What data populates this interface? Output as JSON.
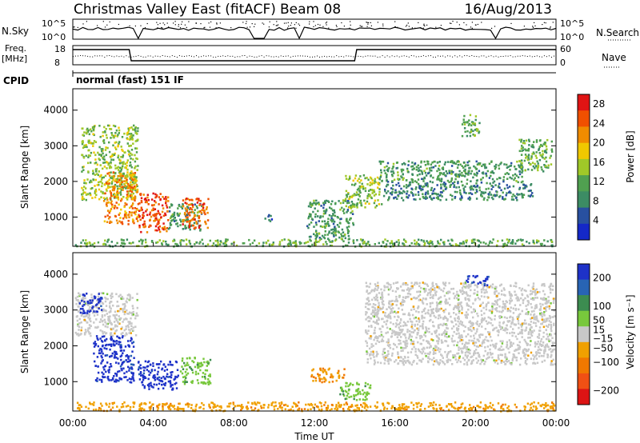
{
  "header": {
    "title": "Christmas Valley East (fitACF)",
    "beam": "Beam 08",
    "date": "16/Aug/2013"
  },
  "status_panels": {
    "nsky_label": "N.Sky",
    "nsky_ticks": [
      "10^5",
      "10^0"
    ],
    "nsearch_label": "N.Search",
    "nsearch_ticks": [
      "10^5",
      "10^0"
    ],
    "freq_label": "Freq.",
    "freq_unit": "[MHz]",
    "freq_ticks": [
      "18",
      "8"
    ],
    "nave_label": "Nave",
    "nave_ticks": [
      "60",
      "0"
    ],
    "cpid_label": "CPID",
    "cpid_mode": "normal (fast) 151 IF"
  },
  "x_axis": {
    "label": "Time UT",
    "ticks": [
      "00:00",
      "04:00",
      "08:00",
      "12:00",
      "16:00",
      "20:00",
      "00:00"
    ],
    "range_hours": [
      0,
      24
    ]
  },
  "colors": {
    "power": [
      "#1428c8",
      "#2850a0",
      "#3c8c64",
      "#50a050",
      "#a0c828",
      "#f0c800",
      "#f08c00",
      "#f05000",
      "#e01414"
    ],
    "velocity": [
      "#1e32c8",
      "#2864b4",
      "#3c8c50",
      "#78c83c",
      "#c8c8c8",
      "#f0a000",
      "#f07800",
      "#f05014",
      "#dc1414"
    ]
  },
  "chart_data": [
    {
      "type": "heatmap",
      "name": "Power",
      "xlabel": "Time UT",
      "ylabel": "Slant Range [km]",
      "xlim": [
        0,
        24
      ],
      "ylim": [
        180,
        4600
      ],
      "y_ticks": [
        "4000",
        "3000",
        "2000",
        "1000"
      ],
      "colorbar": {
        "label": "Power [dB]",
        "ticks": [
          "28",
          "24",
          "20",
          "16",
          "12",
          "8",
          "4"
        ],
        "range": [
          0,
          30
        ]
      },
      "regions": [
        {
          "t": [
            0.4,
            3.2
          ],
          "r": [
            1500,
            3600
          ],
          "v": 14
        },
        {
          "t": [
            1.5,
            3.2
          ],
          "r": [
            800,
            2300
          ],
          "v": 22
        },
        {
          "t": [
            3.2,
            4.7
          ],
          "r": [
            600,
            1700
          ],
          "v": 25
        },
        {
          "t": [
            4.7,
            6.4
          ],
          "r": [
            650,
            1400
          ],
          "v": 10
        },
        {
          "t": [
            5.4,
            6.7
          ],
          "r": [
            700,
            1550
          ],
          "v": 24
        },
        {
          "t": [
            9.5,
            10.0
          ],
          "r": [
            900,
            1100
          ],
          "v": 6
        },
        {
          "t": [
            11.6,
            13.9
          ],
          "r": [
            400,
            1500
          ],
          "v": 10
        },
        {
          "t": [
            13.5,
            15.3
          ],
          "r": [
            1300,
            2200
          ],
          "v": 14
        },
        {
          "t": [
            15.2,
            22.3
          ],
          "r": [
            2000,
            2600
          ],
          "v": 10
        },
        {
          "t": [
            15.4,
            22.8
          ],
          "r": [
            1500,
            2000
          ],
          "v": 8
        },
        {
          "t": [
            19.3,
            20.2
          ],
          "r": [
            3300,
            3900
          ],
          "v": 12
        },
        {
          "t": [
            22.1,
            23.8
          ],
          "r": [
            2300,
            3200
          ],
          "v": 12
        },
        {
          "t": [
            0.1,
            23.9
          ],
          "r": [
            200,
            400
          ],
          "v": 12
        }
      ]
    },
    {
      "type": "heatmap",
      "name": "Velocity",
      "xlabel": "Time UT",
      "ylabel": "Slant Range [km]",
      "xlim": [
        0,
        24
      ],
      "ylim": [
        180,
        4600
      ],
      "y_ticks": [
        "4000",
        "3000",
        "2000",
        "1000"
      ],
      "colorbar": {
        "label": "Velocity [m s^-1]",
        "ticks": [
          "200",
          "100",
          "50",
          "15",
          "-15",
          "-50",
          "-100",
          "-200"
        ],
        "range": [
          -250,
          250
        ]
      },
      "regions": [
        {
          "t": [
            0.1,
            3.2
          ],
          "r": [
            2300,
            3500
          ],
          "v": 0
        },
        {
          "t": [
            0.3,
            1.4
          ],
          "r": [
            2900,
            3500
          ],
          "v": 220
        },
        {
          "t": [
            1.0,
            3.0
          ],
          "r": [
            1000,
            2300
          ],
          "v": 220
        },
        {
          "t": [
            3.2,
            5.2
          ],
          "r": [
            800,
            1600
          ],
          "v": 220
        },
        {
          "t": [
            5.3,
            6.8
          ],
          "r": [
            950,
            1700
          ],
          "v": 60
        },
        {
          "t": [
            11.8,
            13.5
          ],
          "r": [
            1000,
            1400
          ],
          "v": -80
        },
        {
          "t": [
            13.2,
            14.8
          ],
          "r": [
            500,
            1000
          ],
          "v": 60
        },
        {
          "t": [
            14.5,
            23.9
          ],
          "r": [
            1500,
            3800
          ],
          "v": 0
        },
        {
          "t": [
            19.5,
            20.6
          ],
          "r": [
            3700,
            4000
          ],
          "v": 220
        },
        {
          "t": [
            0.1,
            23.9
          ],
          "r": [
            200,
            450
          ],
          "v": -60
        }
      ]
    }
  ]
}
